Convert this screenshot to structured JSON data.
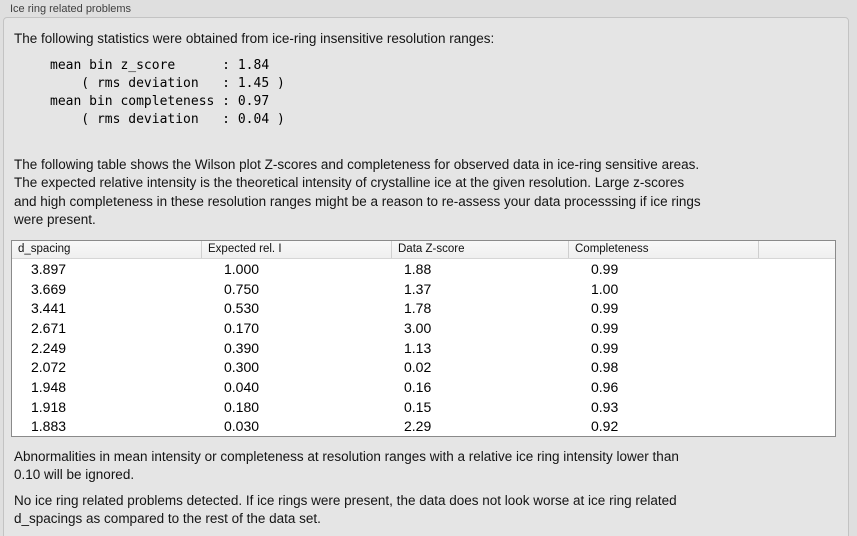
{
  "window": {
    "title": "Ice ring related problems"
  },
  "stats_section": {
    "intro": "The following statistics were obtained from ice-ring insensitive resolution ranges:",
    "mono_lines": [
      "mean bin z_score      : 1.84",
      "    ( rms deviation   : 1.45 )",
      "mean bin completeness : 0.97",
      "    ( rms deviation   : 0.04 )"
    ]
  },
  "table_section": {
    "description_lines": [
      "The following table shows the Wilson plot Z-scores and completeness for observed data in ice-ring sensitive areas.",
      "The expected relative intensity is the theoretical intensity of crystalline ice at the given resolution. Large z-scores",
      "and high completeness in these resolution ranges might be a reason to re-assess your data processsing if ice rings",
      "were present."
    ],
    "table": {
      "headers": [
        "d_spacing",
        "Expected rel. I",
        "Data Z-score",
        "Completeness",
        ""
      ],
      "rows": [
        [
          "3.897",
          "1.000",
          "1.88",
          "0.99",
          ""
        ],
        [
          "3.669",
          "0.750",
          "1.37",
          "1.00",
          ""
        ],
        [
          "3.441",
          "0.530",
          "1.78",
          "0.99",
          ""
        ],
        [
          "2.671",
          "0.170",
          "3.00",
          "0.99",
          ""
        ],
        [
          "2.249",
          "0.390",
          "1.13",
          "0.99",
          ""
        ],
        [
          "2.072",
          "0.300",
          "0.02",
          "0.98",
          ""
        ],
        [
          "1.948",
          "0.040",
          "0.16",
          "0.96",
          ""
        ],
        [
          "1.918",
          "0.180",
          "0.15",
          "0.93",
          ""
        ],
        [
          "1.883",
          "0.030",
          "2.29",
          "0.92",
          ""
        ]
      ]
    }
  },
  "footer": {
    "note_lines": [
      "Abnormalities in mean intensity or completeness at resolution ranges with a relative ice ring intensity lower than",
      "0.10 will be ignored."
    ],
    "conclusion_lines": [
      "No ice ring related problems detected. If ice rings were present, the data does not look worse at ice ring related",
      "d_spacings as compared to the rest of the data set."
    ]
  }
}
